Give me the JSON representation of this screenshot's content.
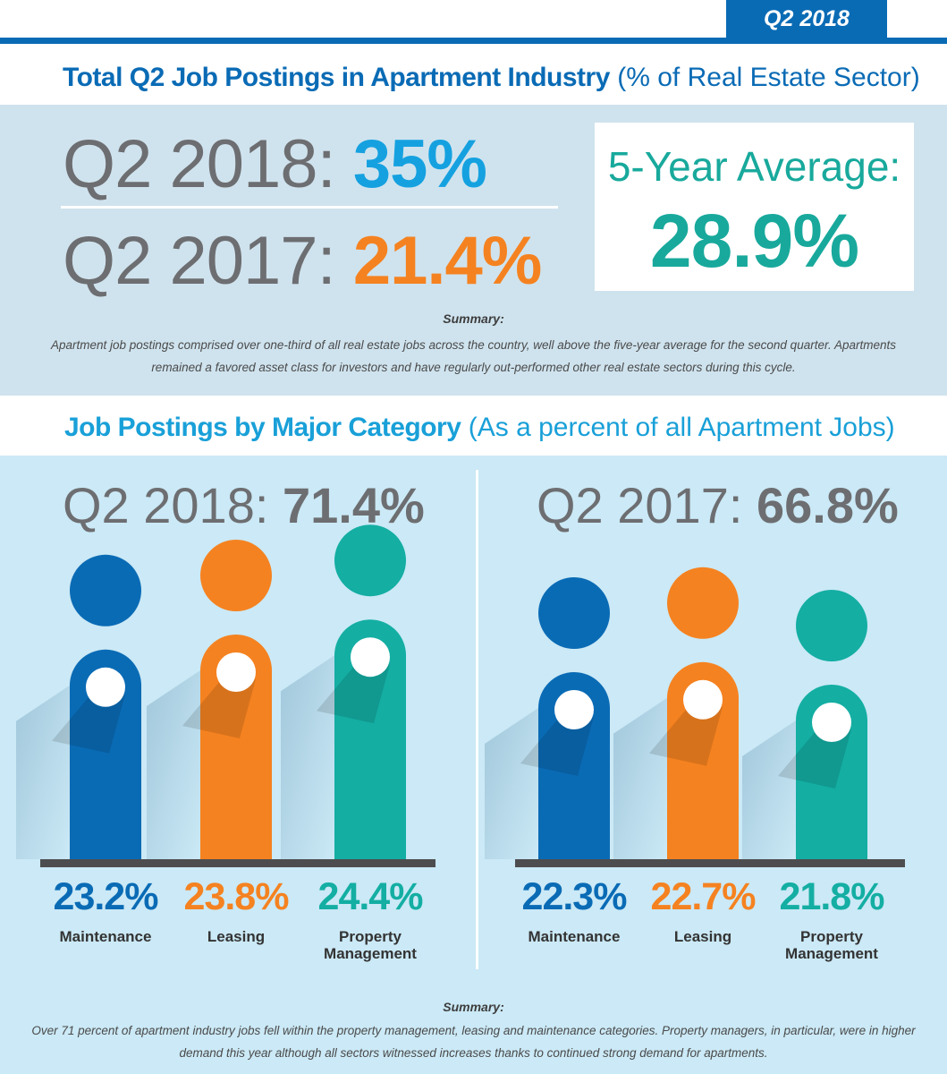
{
  "header": {
    "tag": "Q2 2018"
  },
  "section1": {
    "title_strong": "Total Q2 Job Postings in Apartment Industry",
    "title_light": "(% of Real Estate Sector)",
    "q2_2018_label": "Q2 2018: ",
    "q2_2018_value": "35%",
    "q2_2017_label": "Q2 2017: ",
    "q2_2017_value": "21.4%",
    "average_label": "5-Year Average:",
    "average_value": "28.9%",
    "summary_title": "Summary:",
    "summary_text": "Apartment job postings comprised over one-third of all real estate jobs across the country, well above the five-year average for the second quarter. Apartments remained a favored asset class for investors and have regularly out-performed other real estate sectors during this cycle."
  },
  "section2": {
    "title_strong": "Job Postings by Major Category",
    "title_light": "(As a percent of all Apartment Jobs)",
    "summary_title": "Summary:",
    "summary_text": "Over 71 percent of apartment industry jobs fell within the property management, leasing and maintenance categories. Property managers, in particular, were in higher demand this year although all sectors witnessed increases thanks to continued strong demand for apartments."
  },
  "colors": {
    "maintenance": "#0a6bb5",
    "leasing": "#f58220",
    "property_management": "#14aea3",
    "accent_blue": "#15a1e0",
    "gray_text": "#6d6e71"
  },
  "chart_data": [
    {
      "type": "bar",
      "title_label": "Q2 2018: ",
      "title_value": "71.4%",
      "categories": [
        {
          "lines": [
            "Maintenance"
          ]
        },
        {
          "lines": [
            "Leasing"
          ]
        },
        {
          "lines": [
            "Property",
            "Management"
          ]
        }
      ],
      "values": [
        23.2,
        23.8,
        24.4
      ],
      "value_labels": [
        "23.2%",
        "23.8%",
        "24.4%"
      ],
      "colors": [
        "#0a6bb5",
        "#f58220",
        "#14aea3"
      ]
    },
    {
      "type": "bar",
      "title_label": "Q2 2017: ",
      "title_value": "66.8%",
      "categories": [
        {
          "lines": [
            "Maintenance"
          ]
        },
        {
          "lines": [
            "Leasing"
          ]
        },
        {
          "lines": [
            "Property",
            "Management"
          ]
        }
      ],
      "values": [
        22.3,
        22.7,
        21.8
      ],
      "value_labels": [
        "22.3%",
        "22.7%",
        "21.8%"
      ],
      "colors": [
        "#0a6bb5",
        "#f58220",
        "#14aea3"
      ]
    }
  ]
}
